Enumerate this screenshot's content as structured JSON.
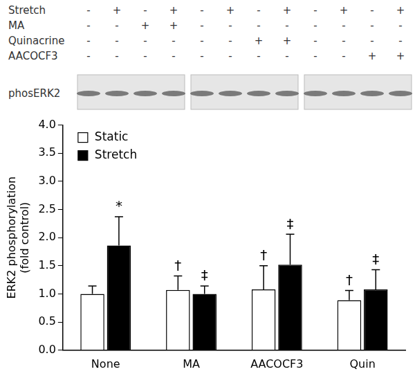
{
  "blot": {
    "rows": [
      {
        "label": "Stretch",
        "signs": [
          "-",
          "+",
          "-",
          "+",
          "-",
          "+",
          "-",
          "+",
          "-",
          "+",
          "-",
          "+"
        ]
      },
      {
        "label": "MA",
        "signs": [
          "-",
          "-",
          "+",
          "+",
          "-",
          "-",
          "-",
          "-",
          "-",
          "-",
          "-",
          "-"
        ]
      },
      {
        "label": "Quinacrine",
        "signs": [
          "-",
          "-",
          "-",
          "-",
          "-",
          "-",
          "+",
          "+",
          "-",
          "-",
          "-",
          "-"
        ]
      },
      {
        "label": "AACOCF3",
        "signs": [
          "-",
          "-",
          "-",
          "-",
          "-",
          "-",
          "-",
          "-",
          "-",
          "-",
          "+",
          "+"
        ]
      }
    ],
    "band_label": "phosERK2"
  },
  "chart_data": {
    "type": "bar",
    "y_label": [
      "ERK2 phosphorylation",
      "(fold control)"
    ],
    "categories": [
      "None",
      "MA",
      "AACOCF3",
      "Quin"
    ],
    "series": [
      {
        "name": "Static",
        "color": "#ffffff",
        "values": [
          1.0,
          1.07,
          1.08,
          0.89
        ],
        "errors": [
          0.14,
          0.25,
          0.42,
          0.17
        ],
        "annotations": [
          null,
          "†",
          "†",
          "†"
        ]
      },
      {
        "name": "Stretch",
        "color": "#000000",
        "values": [
          1.86,
          1.0,
          1.52,
          1.08
        ],
        "errors": [
          0.51,
          0.14,
          0.54,
          0.35
        ],
        "annotations": [
          "*",
          "‡",
          "‡",
          "‡"
        ]
      }
    ],
    "ylim": [
      0,
      4
    ],
    "yticks": [
      {
        "value": 0,
        "label": "0.0"
      },
      {
        "value": 0.5,
        "label": "0.5"
      },
      {
        "value": 1,
        "label": "1.0"
      },
      {
        "value": 1.5,
        "label": "1.5"
      },
      {
        "value": 2,
        "label": "2.0"
      },
      {
        "value": 2.5,
        "label": "2.5"
      },
      {
        "value": 3,
        "label": "3.0"
      },
      {
        "value": 3.5,
        "label": "3.5"
      },
      {
        "value": 4,
        "label": "4.0"
      }
    ],
    "grid": false,
    "legend": "upper left"
  }
}
